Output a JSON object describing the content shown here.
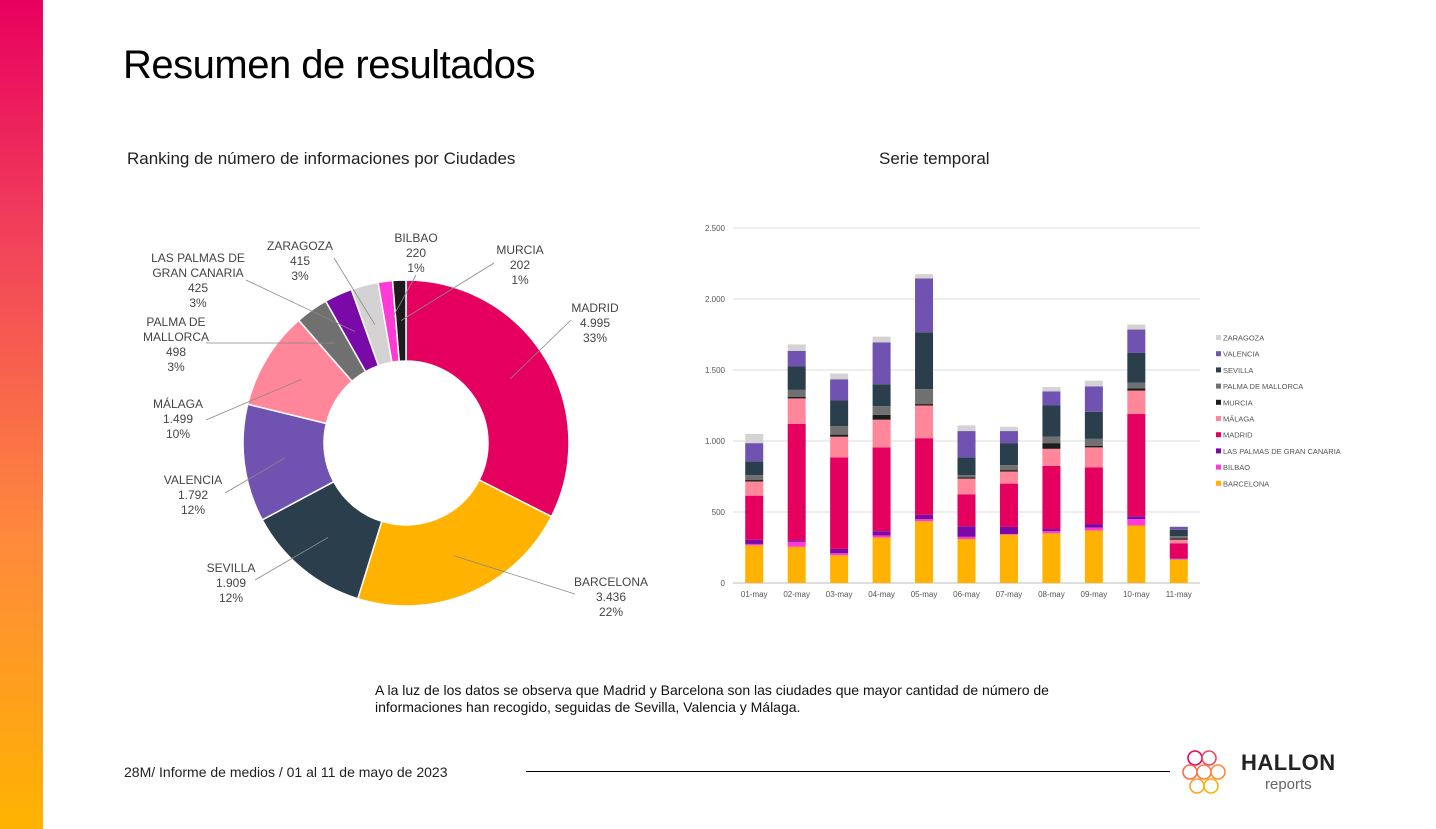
{
  "page": {
    "title": "Resumen de resultados",
    "summary": "A la luz de los datos se observa que Madrid y Barcelona son las ciudades que mayor cantidad de número de informaciones han recogido, seguidas de Sevilla, Valencia y Málaga.",
    "footer": "28M/ Informe de medios / 01 al 11 de mayo de 2023",
    "logo_word": "HALLON",
    "logo_sub": "reports"
  },
  "colors": {
    "madrid": "#e5005f",
    "barcelona": "#ffb300",
    "sevilla": "#2b3e4c",
    "valencia": "#7052b0",
    "malaga": "#ff8799",
    "palma": "#707070",
    "las_palmas": "#7a0aa8",
    "zaragoza": "#d4d2d2",
    "bilbao": "#ff3ad6",
    "murcia": "#1c1c1c",
    "accent": "#e8005f"
  },
  "chart_data": [
    {
      "type": "pie",
      "title": "Ranking de número de informaciones por Ciudades",
      "slices": [
        {
          "label": "MADRID",
          "value": 4995,
          "value_label": "4.995",
          "pct_label": "33%",
          "color_key": "madrid"
        },
        {
          "label": "BARCELONA",
          "value": 3436,
          "value_label": "3.436",
          "pct_label": "22%",
          "color_key": "barcelona"
        },
        {
          "label": "SEVILLA",
          "value": 1909,
          "value_label": "1.909",
          "pct_label": "12%",
          "color_key": "sevilla"
        },
        {
          "label": "VALENCIA",
          "value": 1792,
          "value_label": "1.792",
          "pct_label": "12%",
          "color_key": "valencia"
        },
        {
          "label": "MÁLAGA",
          "value": 1499,
          "value_label": "1.499",
          "pct_label": "10%",
          "color_key": "malaga"
        },
        {
          "label": "PALMA DE MALLORCA",
          "value": 498,
          "value_label": "498",
          "pct_label": "3%",
          "color_key": "palma"
        },
        {
          "label": "LAS PALMAS DE GRAN CANARIA",
          "value": 425,
          "value_label": "425",
          "pct_label": "3%",
          "color_key": "las_palmas"
        },
        {
          "label": "ZARAGOZA",
          "value": 415,
          "value_label": "415",
          "pct_label": "3%",
          "color_key": "zaragoza"
        },
        {
          "label": "BILBAO",
          "value": 220,
          "value_label": "220",
          "pct_label": "1%",
          "color_key": "bilbao"
        },
        {
          "label": "MURCIA",
          "value": 202,
          "value_label": "202",
          "pct_label": "1%",
          "color_key": "murcia"
        }
      ]
    },
    {
      "type": "bar",
      "stacked": true,
      "title": "Serie temporal",
      "categories": [
        "01-may",
        "02-may",
        "03-may",
        "04-may",
        "05-may",
        "06-may",
        "07-may",
        "08-may",
        "09-may",
        "10-may",
        "11-may"
      ],
      "ylim": [
        0,
        2500
      ],
      "yticks": [
        0,
        500,
        1000,
        1500,
        2000,
        2500
      ],
      "ytick_labels": [
        "0",
        "500",
        "1.000",
        "1.500",
        "2.000",
        "2.500"
      ],
      "grid": true,
      "legend_position": "right",
      "series": [
        {
          "name": "BARCELONA",
          "color_key": "barcelona",
          "values": [
            265,
            255,
            195,
            320,
            435,
            310,
            340,
            350,
            370,
            405,
            165
          ]
        },
        {
          "name": "BILBAO",
          "color_key": "bilbao",
          "values": [
            10,
            35,
            15,
            15,
            15,
            15,
            5,
            15,
            20,
            45,
            5
          ]
        },
        {
          "name": "LAS PALMAS DE GRAN CANARIA",
          "color_key": "las_palmas",
          "values": [
            30,
            10,
            30,
            30,
            30,
            75,
            50,
            15,
            25,
            20,
            5
          ]
        },
        {
          "name": "MADRID",
          "color_key": "madrid",
          "values": [
            310,
            820,
            645,
            590,
            540,
            225,
            305,
            445,
            400,
            720,
            105
          ]
        },
        {
          "name": "MÁLAGA",
          "color_key": "malaga",
          "values": [
            100,
            180,
            145,
            195,
            230,
            110,
            85,
            120,
            140,
            165,
            25
          ]
        },
        {
          "name": "MURCIA",
          "color_key": "murcia",
          "values": [
            10,
            10,
            15,
            35,
            10,
            10,
            10,
            40,
            10,
            15,
            10
          ]
        },
        {
          "name": "PALMA DE MALLORCA",
          "color_key": "palma",
          "values": [
            35,
            50,
            60,
            60,
            105,
            15,
            35,
            45,
            50,
            40,
            15
          ]
        },
        {
          "name": "SEVILLA",
          "color_key": "sevilla",
          "values": [
            95,
            165,
            180,
            155,
            400,
            125,
            155,
            220,
            190,
            210,
            45
          ]
        },
        {
          "name": "VALENCIA",
          "color_key": "valencia",
          "values": [
            130,
            110,
            150,
            295,
            380,
            185,
            85,
            100,
            180,
            165,
            20
          ]
        },
        {
          "name": "ZARAGOZA",
          "color_key": "zaragoza",
          "values": [
            65,
            45,
            40,
            40,
            30,
            40,
            30,
            30,
            40,
            35,
            5
          ]
        }
      ],
      "legend": [
        "ZARAGOZA",
        "VALENCIA",
        "SEVILLA",
        "PALMA DE MALLORCA",
        "MURCIA",
        "MÁLAGA",
        "MADRID",
        "LAS PALMAS DE GRAN CANARIA",
        "BILBAO",
        "BARCELONA"
      ]
    }
  ]
}
